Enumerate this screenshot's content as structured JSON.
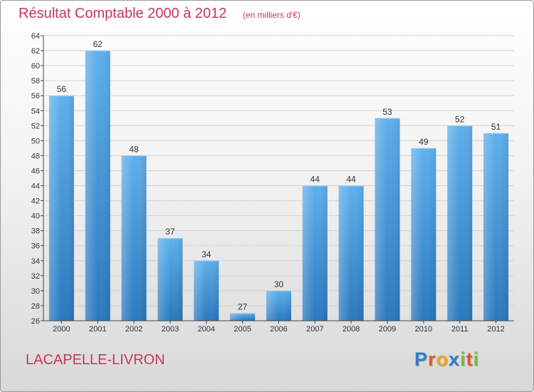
{
  "title": "Résultat Comptable 2000 à 2012",
  "subtitle": "(en milliers d'€)",
  "commune": "LACAPELLE-LIVRON",
  "brand": {
    "letters": [
      "P",
      "r",
      "o",
      "x",
      "i",
      "t",
      "i"
    ],
    "colors": [
      "#2f7fc8",
      "#e8552a",
      "#f2a31b",
      "#2f7fc8",
      "#7bb93e",
      "#e8552a",
      "#7bb93e"
    ]
  },
  "chart_data": {
    "type": "bar",
    "categories": [
      "2000",
      "2001",
      "2002",
      "2003",
      "2004",
      "2005",
      "2006",
      "2007",
      "2008",
      "2009",
      "2010",
      "2011",
      "2012"
    ],
    "values": [
      56,
      62,
      48,
      37,
      34,
      27,
      30,
      44,
      44,
      53,
      49,
      52,
      51
    ],
    "ylim": [
      26,
      64
    ],
    "yticks": [
      26,
      28,
      30,
      32,
      34,
      36,
      38,
      40,
      42,
      44,
      46,
      48,
      50,
      52,
      54,
      56,
      58,
      60,
      62,
      64
    ],
    "grid": true,
    "data_labels": true,
    "bar_color": "#3d95d9"
  }
}
